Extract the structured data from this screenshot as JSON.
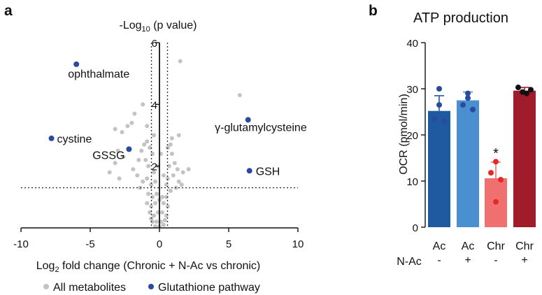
{
  "figure": {
    "panels": [
      "a",
      "b"
    ]
  },
  "legend": {
    "all_label": "All metabolites",
    "gsh_label": "Glutathione pathway"
  },
  "colors": {
    "grey": "#c3c3c3",
    "blue": "#2a4aa0",
    "ac": "#1f5aa0",
    "acnac": "#4a90d0",
    "chr": "#f07070",
    "chrnac": "#a01c2a"
  },
  "chart_data": [
    {
      "type": "scatter",
      "panel": "a",
      "xlabel_pre": "Log",
      "xlabel_sub": "2",
      "xlabel_post": " fold change (Chronic + N-Ac vs chronic)",
      "ylabel_pre": "-Log",
      "ylabel_sub": "10",
      "ylabel_post": " (p value)",
      "xlim": [
        -10,
        10
      ],
      "ylim": [
        0,
        6
      ],
      "xticks": [
        -10,
        -5,
        0,
        5,
        10
      ],
      "yticks": [
        2,
        4,
        6
      ],
      "threshold_x": [
        -0.58,
        0.58
      ],
      "threshold_y": 1.3,
      "labeled": [
        {
          "name": "ophthalmate",
          "x": -6.0,
          "y": 5.3
        },
        {
          "name": "cystine",
          "x": -7.8,
          "y": 2.9
        },
        {
          "name": "GSSG",
          "x": -2.2,
          "y": 2.55
        },
        {
          "name": "γ-glutamylcysteine",
          "x": 6.4,
          "y": 3.5
        },
        {
          "name": "GSH",
          "x": 6.5,
          "y": 1.85
        }
      ],
      "other": [
        [
          1.5,
          5.4
        ],
        [
          5.8,
          4.3
        ],
        [
          -1.2,
          4.0
        ],
        [
          -1.8,
          3.7
        ],
        [
          -2.0,
          3.4
        ],
        [
          -2.3,
          3.3
        ],
        [
          -3.2,
          3.2
        ],
        [
          -2.7,
          3.1
        ],
        [
          -0.9,
          3.3
        ],
        [
          1.4,
          3.0
        ],
        [
          0.8,
          2.7
        ],
        [
          -3.0,
          2.5
        ],
        [
          -2.6,
          2.3
        ],
        [
          -3.2,
          2.1
        ],
        [
          -3.6,
          1.8
        ],
        [
          -2.9,
          1.6
        ],
        [
          -1.3,
          2.5
        ],
        [
          -1.1,
          2.7
        ],
        [
          -0.9,
          2.8
        ],
        [
          -0.7,
          2.6
        ],
        [
          -1.5,
          2.2
        ],
        [
          -1.0,
          2.2
        ],
        [
          -0.8,
          2.0
        ],
        [
          0.6,
          2.6
        ],
        [
          0.9,
          2.4
        ],
        [
          1.1,
          2.1
        ],
        [
          0.7,
          2.0
        ],
        [
          1.3,
          1.9
        ],
        [
          1.7,
          1.8
        ],
        [
          2.1,
          1.9
        ],
        [
          -1.6,
          1.7
        ],
        [
          -1.2,
          1.5
        ],
        [
          -0.9,
          1.6
        ],
        [
          -0.6,
          1.4
        ],
        [
          0.6,
          1.6
        ],
        [
          1.0,
          1.7
        ],
        [
          1.4,
          1.5
        ],
        [
          -0.4,
          1.8
        ],
        [
          -0.3,
          1.5
        ],
        [
          0.3,
          1.7
        ],
        [
          0.5,
          1.4
        ],
        [
          -0.8,
          1.1
        ],
        [
          -0.5,
          1.0
        ],
        [
          -0.2,
          1.1
        ],
        [
          0.2,
          1.0
        ],
        [
          0.5,
          1.0
        ],
        [
          0.8,
          1.2
        ],
        [
          -0.9,
          0.8
        ],
        [
          -0.6,
          0.7
        ],
        [
          -0.3,
          0.8
        ],
        [
          0.0,
          0.9
        ],
        [
          0.3,
          0.8
        ],
        [
          0.6,
          0.7
        ],
        [
          -0.7,
          0.5
        ],
        [
          -0.4,
          0.4
        ],
        [
          -0.1,
          0.5
        ],
        [
          0.2,
          0.5
        ],
        [
          0.5,
          0.4
        ],
        [
          -0.5,
          0.2
        ],
        [
          -0.2,
          0.2
        ],
        [
          0.1,
          0.2
        ],
        [
          0.3,
          0.1
        ],
        [
          -0.3,
          0.05
        ],
        [
          0.0,
          0.05
        ],
        [
          0.4,
          0.25
        ],
        [
          -0.6,
          0.3
        ],
        [
          1.2,
          1.3
        ],
        [
          1.6,
          1.4
        ],
        [
          -1.4,
          1.3
        ],
        [
          -1.9,
          1.9
        ],
        [
          0.9,
          2.9
        ],
        [
          -0.5,
          2.4
        ],
        [
          -0.4,
          3.0
        ],
        [
          0.1,
          2.4
        ],
        [
          -0.1,
          2.0
        ]
      ]
    },
    {
      "type": "bar",
      "panel": "b",
      "title": "ATP production",
      "ylabel": "OCR (pmol/min)",
      "ylim": [
        0,
        40
      ],
      "yticks": [
        0,
        10,
        20,
        30,
        40
      ],
      "categories": [
        "Ac",
        "Ac",
        "Chr",
        "Chr"
      ],
      "nac_row_label": "N-Ac",
      "nac": [
        "-",
        "+",
        "-",
        "+"
      ],
      "values": [
        25.2,
        27.5,
        10.6,
        29.6
      ],
      "errors": [
        3.3,
        1.8,
        3.5,
        0.7
      ],
      "points": [
        [
          30.0,
          23.5,
          23.0,
          26.5
        ],
        [
          29.0,
          26.5,
          25.5,
          28.0
        ],
        [
          14.2,
          11.8,
          10.3,
          5.5
        ],
        [
          30.3,
          29.3,
          29.0,
          29.8
        ]
      ],
      "annotation": "*"
    }
  ]
}
